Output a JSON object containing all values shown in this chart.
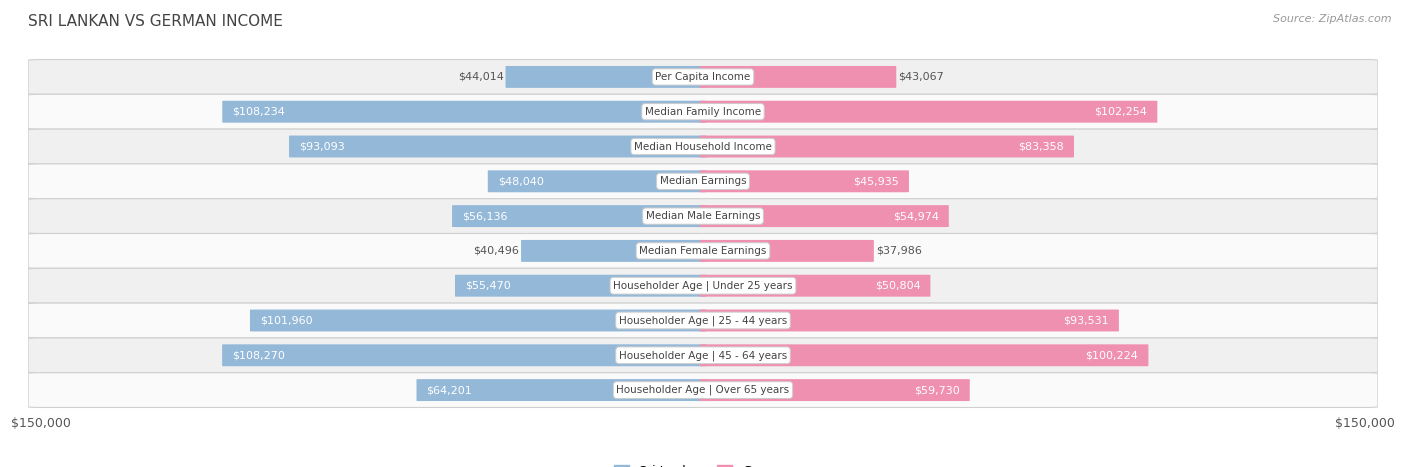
{
  "title": "SRI LANKAN VS GERMAN INCOME",
  "source": "Source: ZipAtlas.com",
  "categories": [
    "Per Capita Income",
    "Median Family Income",
    "Median Household Income",
    "Median Earnings",
    "Median Male Earnings",
    "Median Female Earnings",
    "Householder Age | Under 25 years",
    "Householder Age | 25 - 44 years",
    "Householder Age | 45 - 64 years",
    "Householder Age | Over 65 years"
  ],
  "sri_lankan": [
    44014,
    108234,
    93093,
    48040,
    56136,
    40496,
    55470,
    101960,
    108270,
    64201
  ],
  "german": [
    43067,
    102254,
    83358,
    45935,
    54974,
    37986,
    50804,
    93531,
    100224,
    59730
  ],
  "max_val": 150000,
  "sri_lankan_color": "#94b8d8",
  "german_color": "#f090b0",
  "bar_height": 0.62,
  "bg_color": "#ffffff",
  "row_bg_even": "#f0f0f0",
  "row_bg_odd": "#fafafa",
  "row_border": "#d0d0d0",
  "label_color_dark": "#555555",
  "label_color_light": "#ffffff",
  "title_color": "#444444",
  "source_color": "#999999"
}
